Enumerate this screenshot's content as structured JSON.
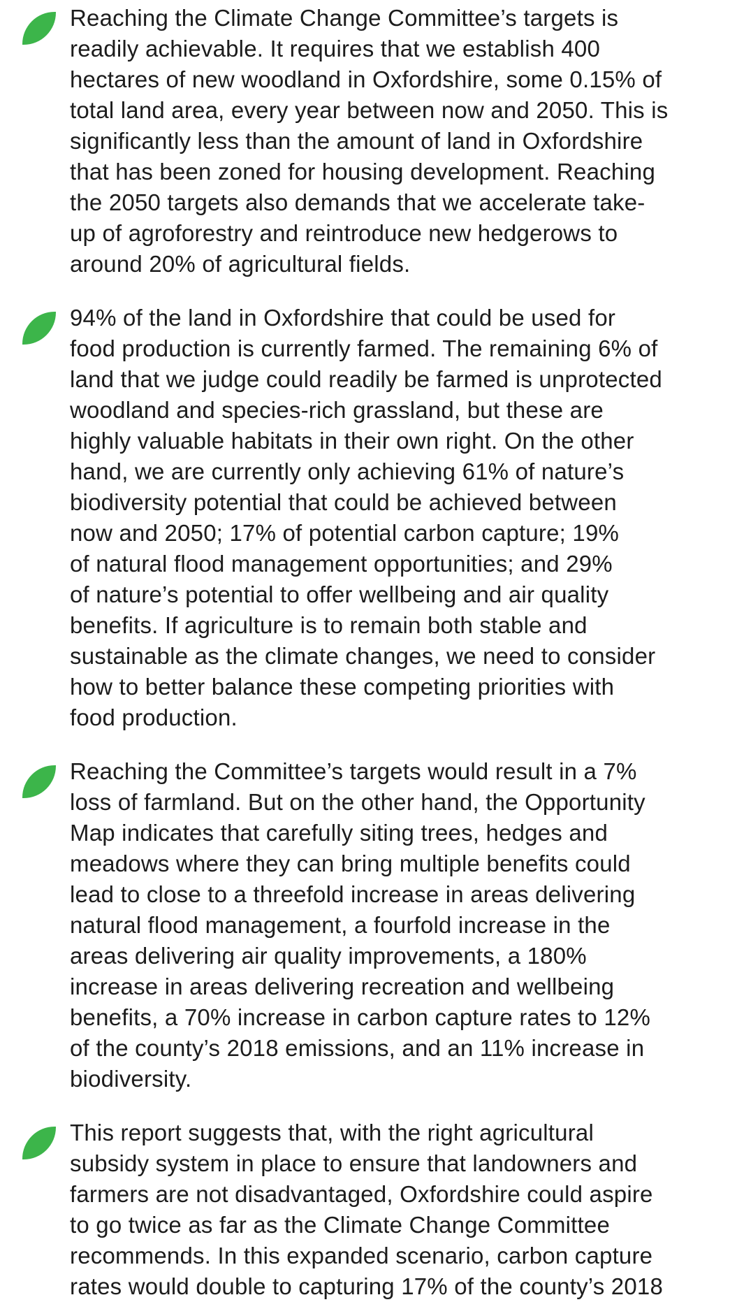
{
  "items": [
    {
      "lines": [
        "Reaching the Climate Change Committee’s targets is",
        "readily achievable. It requires that we establish 400",
        "hectares of new woodland in Oxfordshire, some 0.15% of",
        "total land area, every year between now and 2050. This is",
        "significantly less than the amount of land in Oxfordshire",
        "that has been zoned for housing development. Reaching",
        "the 2050 targets also demands that we accelerate take-",
        "up of agroforestry and reintroduce new hedgerows to",
        "around 20% of agricultural fields."
      ]
    },
    {
      "lines": [
        "94% of the land in Oxfordshire that could be used for",
        "food production is currently farmed. The remaining 6% of",
        "land that we judge could readily be farmed is unprotected",
        "woodland and species-rich grassland, but these are",
        "highly valuable habitats in their own right. On the other",
        "hand, we are currently only achieving 61% of nature’s",
        "biodiversity potential that could be achieved between",
        "now and 2050; 17% of potential carbon capture; 19%",
        "of natural flood management opportunities; and 29%",
        "of nature’s potential to offer wellbeing and air quality",
        "benefits. If agriculture is to remain both stable and",
        "sustainable as the climate changes, we need to consider",
        "how to better balance these competing priorities with",
        "food production."
      ]
    },
    {
      "lines": [
        "Reaching the Committee’s targets would result in a 7%",
        "loss of farmland. But on the other hand, the Opportunity",
        "Map indicates that carefully siting trees, hedges and",
        "meadows where they can bring multiple benefits could",
        "lead to close to a threefold increase in areas delivering",
        "natural flood management, a fourfold increase in the",
        "areas delivering air quality improvements, a 180%",
        "increase in areas delivering recreation and wellbeing",
        "benefits, a 70% increase in carbon capture rates to 12%",
        "of the county’s 2018 emissions, and an 11% increase in",
        "biodiversity."
      ]
    },
    {
      "lines": [
        "This report suggests that, with the right agricultural",
        "subsidy system in place to ensure that landowners and",
        "farmers are not disadvantaged, Oxfordshire could aspire",
        "to go twice as far as the Climate Change Committee",
        "recommends. In this expanded scenario, carbon capture",
        "rates would double to capturing 17% of the county’s 2018"
      ]
    }
  ]
}
